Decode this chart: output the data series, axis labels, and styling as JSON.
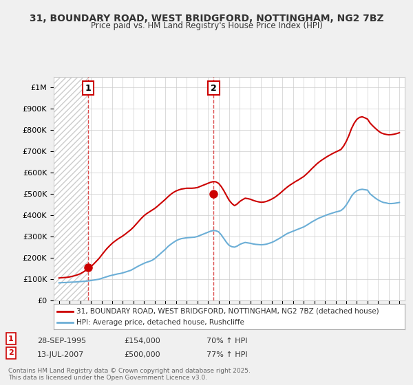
{
  "title": "31, BOUNDARY ROAD, WEST BRIDGFORD, NOTTINGHAM, NG2 7BZ",
  "subtitle": "Price paid vs. HM Land Registry's House Price Index (HPI)",
  "xlim": [
    1992.5,
    2025.5
  ],
  "ylim": [
    0,
    1050000
  ],
  "yticks": [
    0,
    100000,
    200000,
    300000,
    400000,
    500000,
    600000,
    700000,
    800000,
    900000,
    1000000
  ],
  "ytick_labels": [
    "£0",
    "£100K",
    "£200K",
    "£300K",
    "£400K",
    "£500K",
    "£600K",
    "£700K",
    "£800K",
    "£900K",
    "£1M"
  ],
  "xtick_years": [
    1993,
    1994,
    1995,
    1996,
    1997,
    1998,
    1999,
    2000,
    2001,
    2002,
    2003,
    2004,
    2005,
    2006,
    2007,
    2008,
    2009,
    2010,
    2011,
    2012,
    2013,
    2014,
    2015,
    2016,
    2017,
    2018,
    2019,
    2020,
    2021,
    2022,
    2023,
    2024,
    2025
  ],
  "sale1_x": 1995.75,
  "sale1_y": 154000,
  "sale1_label": "1",
  "sale1_date": "28-SEP-1995",
  "sale1_price": "£154,000",
  "sale1_hpi": "70% ↑ HPI",
  "sale2_x": 2007.54,
  "sale2_y": 500000,
  "sale2_label": "2",
  "sale2_date": "13-JUL-2007",
  "sale2_price": "£500,000",
  "sale2_hpi": "77% ↑ HPI",
  "hpi_color": "#6baed6",
  "price_color": "#cc0000",
  "legend_line1": "31, BOUNDARY ROAD, WEST BRIDGFORD, NOTTINGHAM, NG2 7BZ (detached house)",
  "legend_line2": "HPI: Average price, detached house, Rushcliffe",
  "footer": "Contains HM Land Registry data © Crown copyright and database right 2025.\nThis data is licensed under the Open Government Licence v3.0.",
  "bg_color": "#f0f0f0",
  "plot_bg": "#ffffff",
  "hpi_data_x": [
    1993,
    1993.25,
    1993.5,
    1993.75,
    1994,
    1994.25,
    1994.5,
    1994.75,
    1995,
    1995.25,
    1995.5,
    1995.75,
    1996,
    1996.25,
    1996.5,
    1996.75,
    1997,
    1997.25,
    1997.5,
    1997.75,
    1998,
    1998.25,
    1998.5,
    1998.75,
    1999,
    1999.25,
    1999.5,
    1999.75,
    2000,
    2000.25,
    2000.5,
    2000.75,
    2001,
    2001.25,
    2001.5,
    2001.75,
    2002,
    2002.25,
    2002.5,
    2002.75,
    2003,
    2003.25,
    2003.5,
    2003.75,
    2004,
    2004.25,
    2004.5,
    2004.75,
    2005,
    2005.25,
    2005.5,
    2005.75,
    2006,
    2006.25,
    2006.5,
    2006.75,
    2007,
    2007.25,
    2007.5,
    2007.75,
    2008,
    2008.25,
    2008.5,
    2008.75,
    2009,
    2009.25,
    2009.5,
    2009.75,
    2010,
    2010.25,
    2010.5,
    2010.75,
    2011,
    2011.25,
    2011.5,
    2011.75,
    2012,
    2012.25,
    2012.5,
    2012.75,
    2013,
    2013.25,
    2013.5,
    2013.75,
    2014,
    2014.25,
    2014.5,
    2014.75,
    2015,
    2015.25,
    2015.5,
    2015.75,
    2016,
    2016.25,
    2016.5,
    2016.75,
    2017,
    2017.25,
    2017.5,
    2017.75,
    2018,
    2018.25,
    2018.5,
    2018.75,
    2019,
    2019.25,
    2019.5,
    2019.75,
    2020,
    2020.25,
    2020.5,
    2020.75,
    2021,
    2021.25,
    2021.5,
    2021.75,
    2022,
    2022.25,
    2022.5,
    2022.75,
    2023,
    2023.25,
    2023.5,
    2023.75,
    2024,
    2024.25,
    2024.5,
    2024.75,
    2025
  ],
  "hpi_data_y": [
    82000,
    83000,
    83500,
    84000,
    85000,
    85500,
    86000,
    87000,
    88000,
    89000,
    90000,
    91000,
    93000,
    95000,
    97000,
    99000,
    103000,
    107000,
    111000,
    115000,
    118000,
    121000,
    124000,
    126000,
    129000,
    133000,
    137000,
    141000,
    148000,
    155000,
    162000,
    168000,
    174000,
    179000,
    183000,
    188000,
    196000,
    207000,
    218000,
    229000,
    240000,
    253000,
    263000,
    272000,
    280000,
    286000,
    290000,
    292000,
    294000,
    295000,
    296000,
    297000,
    300000,
    305000,
    310000,
    315000,
    320000,
    325000,
    328000,
    327000,
    322000,
    308000,
    290000,
    272000,
    258000,
    252000,
    250000,
    255000,
    263000,
    268000,
    272000,
    270000,
    268000,
    265000,
    263000,
    262000,
    261000,
    262000,
    264000,
    268000,
    272000,
    278000,
    285000,
    292000,
    300000,
    308000,
    315000,
    320000,
    325000,
    330000,
    335000,
    340000,
    345000,
    352000,
    360000,
    368000,
    375000,
    382000,
    388000,
    393000,
    398000,
    403000,
    407000,
    411000,
    415000,
    418000,
    422000,
    432000,
    448000,
    468000,
    490000,
    505000,
    515000,
    520000,
    522000,
    520000,
    518000,
    500000,
    490000,
    480000,
    472000,
    465000,
    460000,
    458000,
    455000,
    455000,
    456000,
    458000,
    460000
  ],
  "price_data_x": [
    1993,
    1993.25,
    1993.5,
    1993.75,
    1994,
    1994.25,
    1994.5,
    1994.75,
    1995,
    1995.25,
    1995.5,
    1995.75,
    1996,
    1996.25,
    1996.5,
    1996.75,
    1997,
    1997.25,
    1997.5,
    1997.75,
    1998,
    1998.25,
    1998.5,
    1998.75,
    1999,
    1999.25,
    1999.5,
    1999.75,
    2000,
    2000.25,
    2000.5,
    2000.75,
    2001,
    2001.25,
    2001.5,
    2001.75,
    2002,
    2002.25,
    2002.5,
    2002.75,
    2003,
    2003.25,
    2003.5,
    2003.75,
    2004,
    2004.25,
    2004.5,
    2004.75,
    2005,
    2005.25,
    2005.5,
    2005.75,
    2006,
    2006.25,
    2006.5,
    2006.75,
    2007,
    2007.25,
    2007.5,
    2007.75,
    2008,
    2008.25,
    2008.5,
    2008.75,
    2009,
    2009.25,
    2009.5,
    2009.75,
    2010,
    2010.25,
    2010.5,
    2010.75,
    2011,
    2011.25,
    2011.5,
    2011.75,
    2012,
    2012.25,
    2012.5,
    2012.75,
    2013,
    2013.25,
    2013.5,
    2013.75,
    2014,
    2014.25,
    2014.5,
    2014.75,
    2015,
    2015.25,
    2015.5,
    2015.75,
    2016,
    2016.25,
    2016.5,
    2016.75,
    2017,
    2017.25,
    2017.5,
    2017.75,
    2018,
    2018.25,
    2018.5,
    2018.75,
    2019,
    2019.25,
    2019.5,
    2019.75,
    2020,
    2020.25,
    2020.5,
    2020.75,
    2021,
    2021.25,
    2021.5,
    2021.75,
    2022,
    2022.25,
    2022.5,
    2022.75,
    2023,
    2023.25,
    2023.5,
    2023.75,
    2024,
    2024.25,
    2024.5,
    2024.75,
    2025
  ],
  "price_data_y": [
    105000,
    106000,
    107000,
    108000,
    110000,
    113000,
    116000,
    120000,
    125000,
    132000,
    140000,
    148000,
    158000,
    170000,
    183000,
    196000,
    212000,
    228000,
    243000,
    256000,
    268000,
    278000,
    287000,
    295000,
    303000,
    312000,
    322000,
    332000,
    344000,
    358000,
    372000,
    386000,
    398000,
    408000,
    416000,
    424000,
    432000,
    442000,
    453000,
    464000,
    475000,
    487000,
    498000,
    507000,
    514000,
    519000,
    523000,
    525000,
    527000,
    527000,
    527000,
    528000,
    530000,
    535000,
    540000,
    545000,
    550000,
    555000,
    558000,
    557000,
    550000,
    535000,
    515000,
    492000,
    470000,
    455000,
    445000,
    453000,
    465000,
    473000,
    480000,
    478000,
    475000,
    470000,
    466000,
    463000,
    461000,
    462000,
    465000,
    470000,
    476000,
    483000,
    492000,
    502000,
    513000,
    524000,
    534000,
    543000,
    551000,
    559000,
    566000,
    574000,
    582000,
    593000,
    605000,
    618000,
    630000,
    642000,
    652000,
    661000,
    669000,
    677000,
    684000,
    691000,
    697000,
    703000,
    709000,
    725000,
    747000,
    775000,
    808000,
    833000,
    851000,
    860000,
    863000,
    858000,
    852000,
    833000,
    820000,
    808000,
    797000,
    788000,
    783000,
    780000,
    778000,
    779000,
    781000,
    784000,
    788000
  ]
}
